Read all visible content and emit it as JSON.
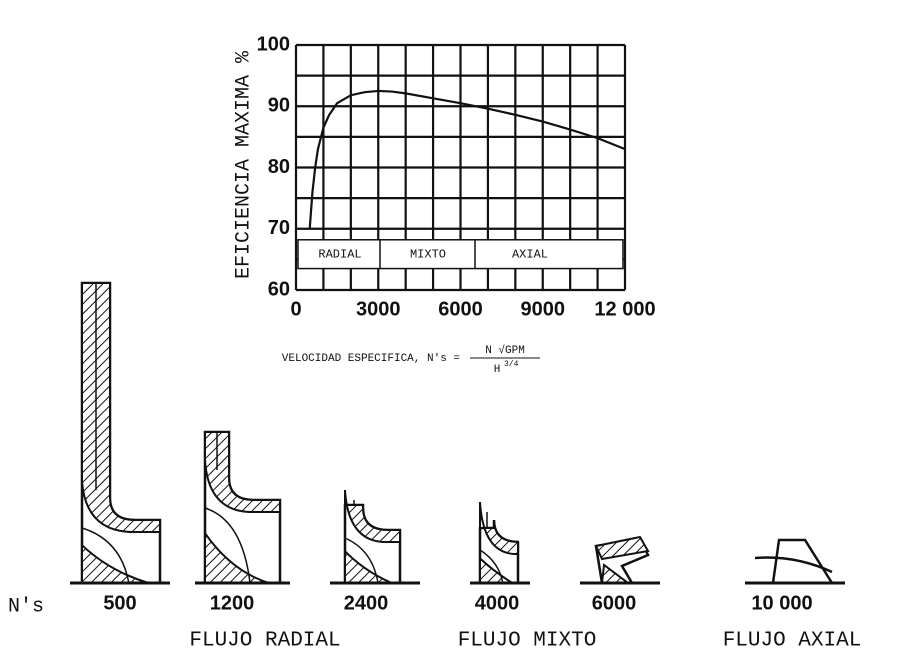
{
  "chart_data": {
    "type": "line",
    "x_label": "VELOCIDAD ESPECIFICA, N's =",
    "formula_numerator": "N √GPM",
    "formula_denominator": "H",
    "formula_exponent": "3/4",
    "y_label": "EFICIENCIA MAXIMA %",
    "regions": [
      "RADIAL",
      "MIXTO",
      "AXIAL"
    ],
    "x": [
      500,
      600,
      700,
      800,
      1000,
      1200,
      1500,
      2000,
      2500,
      3000,
      3500,
      4000,
      5000,
      6000,
      7000,
      8000,
      9000,
      10000,
      11000,
      12000
    ],
    "values": [
      70,
      76,
      80,
      83,
      86.5,
      88.5,
      90.5,
      91.8,
      92.3,
      92.5,
      92.4,
      92.1,
      91.3,
      90.5,
      89.6,
      88.6,
      87.5,
      86.2,
      84.8,
      83
    ],
    "color": "#111111",
    "xlim": [
      0,
      12000
    ],
    "ylim": [
      60,
      100
    ],
    "xticks": [
      0,
      3000,
      6000,
      9000,
      {
        "value": 12000,
        "label": "12 000"
      }
    ],
    "yticks": [
      60,
      70,
      80,
      90,
      100
    ],
    "xgrid": [
      1000,
      2000,
      4000,
      5000,
      7000,
      8000,
      10000,
      11000
    ],
    "ygrid": [
      65,
      75,
      85,
      95
    ],
    "grid": true
  },
  "impellers": {
    "axis_label": "N's",
    "ns": [
      "500",
      "1200",
      "2400",
      "4000",
      "6000",
      "10 000"
    ],
    "groups": [
      "FLUJO RADIAL",
      "FLUJO MIXTO",
      "FLUJO AXIAL"
    ]
  }
}
